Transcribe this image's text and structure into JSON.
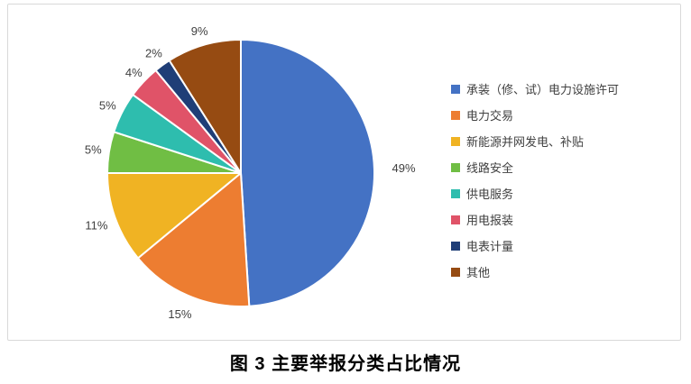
{
  "figure": {
    "caption": "图 3 主要举报分类占比情况"
  },
  "chart_data": {
    "type": "pie",
    "title": "图 3 主要举报分类占比情况",
    "categories": [
      "承装（修、试）电力设施许可",
      "电力交易",
      "新能源并网发电、补贴",
      "线路安全",
      "供电服务",
      "用电报装",
      "电表计量",
      "其他"
    ],
    "values": [
      49,
      15,
      11,
      5,
      5,
      4,
      2,
      9
    ],
    "percent_labels": [
      "49%",
      "15%",
      "11%",
      "5%",
      "5%",
      "4%",
      "2%",
      "9%"
    ],
    "colors": [
      "#4472C4",
      "#ED7D31",
      "#F0B323",
      "#70BE44",
      "#2EBDAE",
      "#E05368",
      "#1F3E77",
      "#964B12"
    ],
    "start_angle_deg": 0,
    "direction": "clockwise",
    "slice_separator_color": "#FFFFFF",
    "labels_position": "outside",
    "label_text_color": "#404040",
    "label_radius_factors": [
      1.22,
      1.15,
      1.15,
      1.12,
      1.12,
      1.1,
      1.11,
      1.11
    ],
    "legend_position": "right",
    "legend_text_color": "#404040",
    "frame_border_color": "#D9D9D9"
  }
}
